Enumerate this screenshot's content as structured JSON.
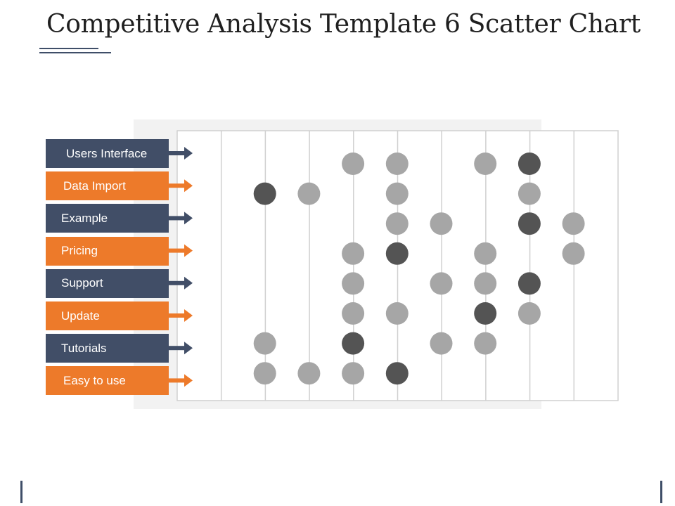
{
  "title": "Competitive Analysis Template 6 Scatter Chart",
  "colors": {
    "navy": "#414e67",
    "orange": "#ed7a2a",
    "dot_light": "#a6a6a6",
    "dot_dark": "#545454",
    "grid": "#d0d0d0",
    "panel": "#f2f2f2",
    "accent_lines": "#3f4e68"
  },
  "chart_data": {
    "type": "scatter",
    "columns": 10,
    "rows": [
      "Users Interface",
      "Data Import",
      "Example",
      "Pricing",
      "Support",
      "Update",
      "Tutorials",
      "Easy to use"
    ],
    "row_colors": [
      "navy",
      "orange",
      "navy",
      "orange",
      "navy",
      "orange",
      "navy",
      "orange"
    ],
    "points": [
      {
        "row": 0,
        "col": 4,
        "dark": false
      },
      {
        "row": 0,
        "col": 5,
        "dark": false
      },
      {
        "row": 0,
        "col": 7,
        "dark": false
      },
      {
        "row": 0,
        "col": 8,
        "dark": true
      },
      {
        "row": 1,
        "col": 2,
        "dark": true
      },
      {
        "row": 1,
        "col": 3,
        "dark": false
      },
      {
        "row": 1,
        "col": 5,
        "dark": false
      },
      {
        "row": 1,
        "col": 8,
        "dark": false
      },
      {
        "row": 2,
        "col": 5,
        "dark": false
      },
      {
        "row": 2,
        "col": 6,
        "dark": false
      },
      {
        "row": 2,
        "col": 8,
        "dark": true
      },
      {
        "row": 2,
        "col": 9,
        "dark": false
      },
      {
        "row": 3,
        "col": 4,
        "dark": false
      },
      {
        "row": 3,
        "col": 5,
        "dark": true
      },
      {
        "row": 3,
        "col": 7,
        "dark": false
      },
      {
        "row": 3,
        "col": 9,
        "dark": false
      },
      {
        "row": 4,
        "col": 4,
        "dark": false
      },
      {
        "row": 4,
        "col": 6,
        "dark": false
      },
      {
        "row": 4,
        "col": 7,
        "dark": false
      },
      {
        "row": 4,
        "col": 8,
        "dark": true
      },
      {
        "row": 5,
        "col": 4,
        "dark": false
      },
      {
        "row": 5,
        "col": 5,
        "dark": false
      },
      {
        "row": 5,
        "col": 7,
        "dark": true
      },
      {
        "row": 5,
        "col": 8,
        "dark": false
      },
      {
        "row": 6,
        "col": 2,
        "dark": false
      },
      {
        "row": 6,
        "col": 4,
        "dark": true
      },
      {
        "row": 6,
        "col": 6,
        "dark": false
      },
      {
        "row": 6,
        "col": 7,
        "dark": false
      },
      {
        "row": 7,
        "col": 2,
        "dark": false
      },
      {
        "row": 7,
        "col": 3,
        "dark": false
      },
      {
        "row": 7,
        "col": 4,
        "dark": false
      },
      {
        "row": 7,
        "col": 5,
        "dark": true
      }
    ]
  }
}
